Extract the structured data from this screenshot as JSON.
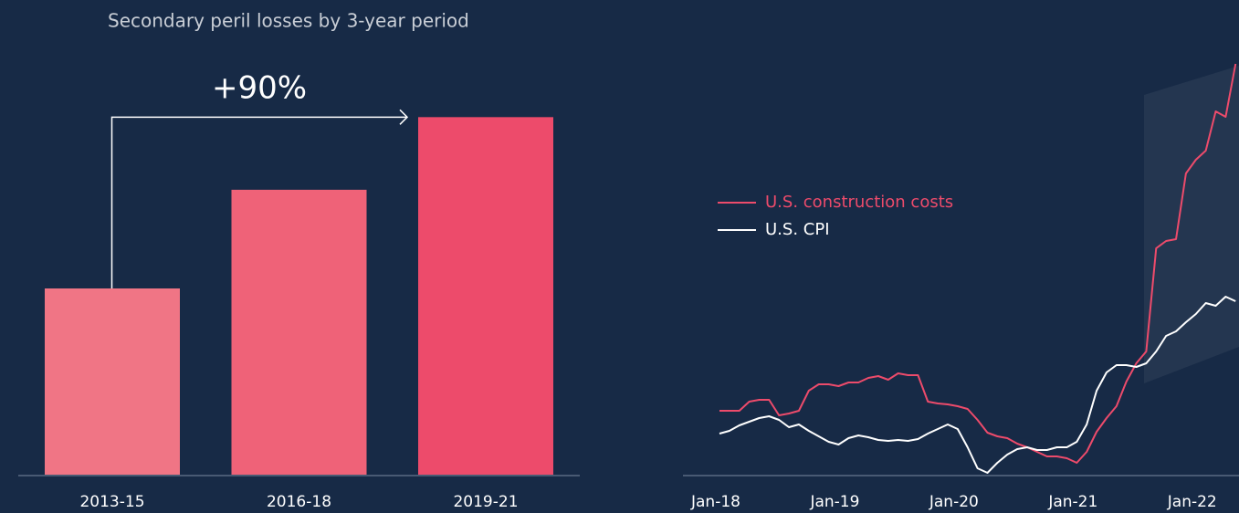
{
  "chart_data": [
    {
      "type": "bar",
      "title": "Secondary peril losses by 3-year period",
      "annotation": "+90%",
      "categories": [
        "2013-15",
        "2016-18",
        "2019-21"
      ],
      "values": [
        100,
        153,
        192
      ],
      "colors": [
        "#f07585",
        "#ef6278",
        "#ed4b6b"
      ],
      "ylim": [
        0,
        250
      ]
    },
    {
      "type": "line",
      "categories": [
        "Jan-18",
        null,
        null,
        null,
        null,
        null,
        null,
        null,
        null,
        null,
        null,
        null,
        "Jan-19",
        null,
        null,
        null,
        null,
        null,
        null,
        null,
        null,
        null,
        null,
        null,
        "Jan-20",
        null,
        null,
        null,
        null,
        null,
        null,
        null,
        null,
        null,
        null,
        null,
        "Jan-21",
        null,
        null,
        null,
        null,
        null,
        null,
        null,
        null,
        null,
        null,
        null,
        "Jan-22",
        null,
        null,
        null,
        null
      ],
      "series": [
        {
          "name": "U.S. construction costs",
          "color": "#ed4b6b",
          "values": [
            14,
            14,
            14,
            16,
            16.4,
            16.4,
            13,
            13.4,
            14,
            18.4,
            19.8,
            19.8,
            19.4,
            20.2,
            20.2,
            21.2,
            21.6,
            20.8,
            22.2,
            21.8,
            21.8,
            16,
            15.6,
            15.4,
            15,
            14.4,
            12,
            9.2,
            8.4,
            8,
            6.8,
            6,
            5,
            4,
            4,
            3.6,
            2.6,
            5,
            9.4,
            12.4,
            15,
            20.4,
            24.4,
            27,
            49.6,
            51.2,
            51.6,
            66,
            69,
            71,
            79.6,
            78.4,
            90
          ]
        },
        {
          "name": "U.S. CPI",
          "color": "#ffffff",
          "values": [
            9,
            9.6,
            10.8,
            11.6,
            12.4,
            12.8,
            12,
            10.4,
            11,
            9.6,
            8.4,
            7.2,
            6.6,
            8,
            8.6,
            8.2,
            7.6,
            7.4,
            7.6,
            7.4,
            7.8,
            9,
            10,
            11,
            10,
            6,
            1.4,
            0.4,
            2.6,
            4.4,
            5.6,
            6,
            5.4,
            5.4,
            6,
            6,
            7.2,
            11,
            18.4,
            22.4,
            24,
            24,
            23.6,
            24.4,
            27,
            30.4,
            31.4,
            33.4,
            35.2,
            37.6,
            37,
            39,
            38
          ]
        }
      ],
      "ylim": [
        0,
        94
      ],
      "legend": "left"
    }
  ]
}
